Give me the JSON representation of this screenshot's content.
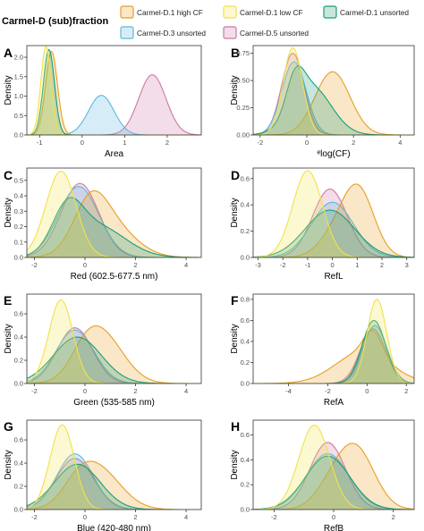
{
  "legend": {
    "title": "Carmel-D (sub)fraction",
    "entries": [
      {
        "label": "Carmel-D.1 high CF",
        "color": "#E69F22"
      },
      {
        "label": "Carmel-D.1 low CF",
        "color": "#F2E24A"
      },
      {
        "label": "Carmel-D.1 unsorted",
        "color": "#1A9E77"
      },
      {
        "label": "Carmel-D.3 unsorted",
        "color": "#5BB8E0"
      },
      {
        "label": "Carmel-D.5 unsorted",
        "color": "#CC79A7"
      }
    ]
  },
  "chart_data": [
    {
      "panel": "A",
      "type": "area",
      "xlabel": "Area",
      "ylabel": "Density",
      "xlim": [
        -1.3,
        2.8
      ],
      "ylim": [
        0,
        2.3
      ],
      "xticks": [
        -1,
        0,
        1,
        2
      ],
      "yticks": [
        0.0,
        0.5,
        1.0,
        1.5,
        2.0
      ],
      "xtick_labels": [
        "-1",
        "0",
        "1",
        "2"
      ],
      "ytick_labels": [
        "0.0",
        "0.5",
        "1.0",
        "1.5",
        "2.0"
      ],
      "series": [
        {
          "name": "Carmel-D.1 high CF",
          "peaks": [
            [
              -0.72,
              2.15,
              0.14
            ]
          ]
        },
        {
          "name": "Carmel-D.1 low CF",
          "peaks": [
            [
              -0.85,
              2.28,
              0.12
            ]
          ]
        },
        {
          "name": "Carmel-D.1 unsorted",
          "peaks": [
            [
              -0.78,
              2.2,
              0.13
            ]
          ]
        },
        {
          "name": "Carmel-D.3 unsorted",
          "peaks": [
            [
              0.45,
              1.02,
              0.3
            ]
          ]
        },
        {
          "name": "Carmel-D.5 unsorted",
          "peaks": [
            [
              1.65,
              1.55,
              0.32
            ]
          ]
        }
      ]
    },
    {
      "panel": "B",
      "type": "area",
      "xlabel": "ᵉlog(CF)",
      "ylabel": "Density",
      "xlim": [
        -2.3,
        4.6
      ],
      "ylim": [
        0,
        0.82
      ],
      "xticks": [
        -2,
        0,
        2,
        4
      ],
      "yticks": [
        0.0,
        0.25,
        0.5,
        0.75
      ],
      "xtick_labels": [
        "-2",
        "0",
        "2",
        "4"
      ],
      "ytick_labels": [
        "0.00",
        "0.25",
        "0.50",
        "0.75"
      ],
      "series": [
        {
          "name": "Carmel-D.1 high CF",
          "peaks": [
            [
              1.1,
              0.58,
              0.75
            ]
          ]
        },
        {
          "name": "Carmel-D.1 low CF",
          "peaks": [
            [
              -0.6,
              0.8,
              0.42
            ]
          ]
        },
        {
          "name": "Carmel-D.1 unsorted",
          "peaks": [
            [
              -0.5,
              0.3,
              0.38
            ],
            [
              0.2,
              0.44,
              0.85
            ]
          ]
        },
        {
          "name": "Carmel-D.3 unsorted",
          "peaks": [
            [
              -0.55,
              0.67,
              0.52
            ]
          ]
        },
        {
          "name": "Carmel-D.5 unsorted",
          "peaks": [
            [
              -0.6,
              0.75,
              0.48
            ]
          ]
        }
      ]
    },
    {
      "panel": "C",
      "type": "area",
      "xlabel": "Red (602.5-677.5 nm)",
      "ylabel": "Density",
      "xlim": [
        -2.3,
        4.6
      ],
      "ylim": [
        0,
        0.58
      ],
      "xticks": [
        -2,
        0,
        2,
        4
      ],
      "yticks": [
        0.0,
        0.1,
        0.2,
        0.3,
        0.4,
        0.5
      ],
      "xtick_labels": [
        "-2",
        "0",
        "2",
        "4"
      ],
      "ytick_labels": [
        "0.0",
        "0.1",
        "0.2",
        "0.3",
        "0.4",
        "0.5"
      ],
      "series": [
        {
          "name": "Carmel-D.1 high CF",
          "peaks": [
            [
              0.2,
              0.25,
              0.65
            ],
            [
              0.9,
              0.22,
              1.0
            ]
          ]
        },
        {
          "name": "Carmel-D.1 low CF",
          "peaks": [
            [
              -0.95,
              0.56,
              0.6
            ]
          ]
        },
        {
          "name": "Carmel-D.1 unsorted",
          "peaks": [
            [
              -0.7,
              0.27,
              0.6
            ],
            [
              0.5,
              0.2,
              1.1
            ]
          ]
        },
        {
          "name": "Carmel-D.3 unsorted",
          "peaks": [
            [
              -0.25,
              0.46,
              0.8
            ]
          ]
        },
        {
          "name": "Carmel-D.5 unsorted",
          "peaks": [
            [
              -0.2,
              0.48,
              0.75
            ]
          ]
        }
      ]
    },
    {
      "panel": "D",
      "type": "area",
      "xlabel": "RefL",
      "ylabel": "Density",
      "xlim": [
        -3.2,
        3.3
      ],
      "ylim": [
        0,
        0.68
      ],
      "xticks": [
        -3,
        -2,
        -1,
        0,
        1,
        2,
        3
      ],
      "yticks": [
        0.0,
        0.2,
        0.4,
        0.6
      ],
      "xtick_labels": [
        "-3",
        "-2",
        "-1",
        "0",
        "1",
        "2",
        "3"
      ],
      "ytick_labels": [
        "0.0",
        "0.2",
        "0.4",
        "0.6"
      ],
      "series": [
        {
          "name": "Carmel-D.1 high CF",
          "peaks": [
            [
              1.1,
              0.45,
              0.62
            ],
            [
              0.25,
              0.2,
              0.7
            ]
          ]
        },
        {
          "name": "Carmel-D.1 low CF",
          "peaks": [
            [
              -1.0,
              0.66,
              0.6
            ]
          ]
        },
        {
          "name": "Carmel-D.1 unsorted",
          "peaks": [
            [
              -0.1,
              0.36,
              1.0
            ]
          ]
        },
        {
          "name": "Carmel-D.3 unsorted",
          "peaks": [
            [
              0.0,
              0.42,
              0.85
            ]
          ]
        },
        {
          "name": "Carmel-D.5 unsorted",
          "peaks": [
            [
              -0.1,
              0.52,
              0.7
            ]
          ]
        }
      ]
    },
    {
      "panel": "E",
      "type": "area",
      "xlabel": "Green (535-585 nm)",
      "ylabel": "Density",
      "xlim": [
        -2.3,
        4.6
      ],
      "ylim": [
        0,
        0.77
      ],
      "xticks": [
        -2,
        0,
        2,
        4
      ],
      "yticks": [
        0.0,
        0.2,
        0.4,
        0.6
      ],
      "xtick_labels": [
        "-2",
        "0",
        "2",
        "4"
      ],
      "ytick_labels": [
        "0.0",
        "0.2",
        "0.4",
        "0.6"
      ],
      "series": [
        {
          "name": "Carmel-D.1 high CF",
          "peaks": [
            [
              0.7,
              0.4,
              0.85
            ],
            [
              0.0,
              0.15,
              0.6
            ]
          ]
        },
        {
          "name": "Carmel-D.1 low CF",
          "peaks": [
            [
              -0.95,
              0.72,
              0.48
            ]
          ]
        },
        {
          "name": "Carmel-D.1 unsorted",
          "peaks": [
            [
              -0.3,
              0.4,
              0.95
            ]
          ]
        },
        {
          "name": "Carmel-D.3 unsorted",
          "peaks": [
            [
              -0.4,
              0.46,
              0.75
            ]
          ]
        },
        {
          "name": "Carmel-D.5 unsorted",
          "peaks": [
            [
              -0.4,
              0.48,
              0.7
            ]
          ]
        }
      ]
    },
    {
      "panel": "F",
      "type": "area",
      "xlabel": "RefA",
      "ylabel": "Density",
      "xlim": [
        -5.8,
        2.4
      ],
      "ylim": [
        0,
        0.85
      ],
      "xticks": [
        -4,
        -2,
        0,
        2
      ],
      "yticks": [
        0.0,
        0.2,
        0.4,
        0.6,
        0.8
      ],
      "xtick_labels": [
        "-4",
        "-2",
        "0",
        "2"
      ],
      "ytick_labels": [
        "0.0",
        "0.2",
        "0.4",
        "0.6",
        "0.8"
      ],
      "series": [
        {
          "name": "Carmel-D.1 high CF",
          "peaks": [
            [
              -0.2,
              0.3,
              1.4
            ],
            [
              0.3,
              0.22,
              0.45
            ]
          ]
        },
        {
          "name": "Carmel-D.1 low CF",
          "peaks": [
            [
              0.5,
              0.8,
              0.5
            ]
          ]
        },
        {
          "name": "Carmel-D.1 unsorted",
          "peaks": [
            [
              0.35,
              0.6,
              0.6
            ]
          ]
        },
        {
          "name": "Carmel-D.3 unsorted",
          "peaks": [
            [
              0.4,
              0.55,
              0.62
            ]
          ]
        },
        {
          "name": "Carmel-D.5 unsorted",
          "peaks": [
            [
              0.3,
              0.52,
              0.65
            ]
          ]
        }
      ]
    },
    {
      "panel": "G",
      "type": "area",
      "xlabel": "Blue (420-480 nm)",
      "ylabel": "Density",
      "xlim": [
        -2.3,
        4.6
      ],
      "ylim": [
        0,
        0.77
      ],
      "xticks": [
        -2,
        0,
        2,
        4
      ],
      "yticks": [
        0.0,
        0.2,
        0.4,
        0.6
      ],
      "xtick_labels": [
        "-2",
        "0",
        "2",
        "4"
      ],
      "ytick_labels": [
        "0.0",
        "0.2",
        "0.4",
        "0.6"
      ],
      "series": [
        {
          "name": "Carmel-D.1 high CF",
          "peaks": [
            [
              0.5,
              0.35,
              0.9
            ],
            [
              -0.3,
              0.12,
              0.6
            ]
          ]
        },
        {
          "name": "Carmel-D.1 low CF",
          "peaks": [
            [
              -0.9,
              0.73,
              0.48
            ]
          ]
        },
        {
          "name": "Carmel-D.1 unsorted",
          "peaks": [
            [
              -0.3,
              0.39,
              0.9
            ]
          ]
        },
        {
          "name": "Carmel-D.3 unsorted",
          "peaks": [
            [
              -0.4,
              0.48,
              0.72
            ]
          ]
        },
        {
          "name": "Carmel-D.5 unsorted",
          "peaks": [
            [
              -0.4,
              0.44,
              0.75
            ]
          ]
        }
      ]
    },
    {
      "panel": "H",
      "type": "area",
      "xlabel": "RefB",
      "ylabel": "Density",
      "xlim": [
        -2.7,
        2.7
      ],
      "ylim": [
        0,
        0.72
      ],
      "xticks": [
        -2,
        0,
        2
      ],
      "yticks": [
        0.0,
        0.2,
        0.4,
        0.6
      ],
      "xtick_labels": [
        "-2",
        "0",
        "2"
      ],
      "ytick_labels": [
        "0.0",
        "0.2",
        "0.4",
        "0.6"
      ],
      "series": [
        {
          "name": "Carmel-D.1 high CF",
          "peaks": [
            [
              0.75,
              0.48,
              0.62
            ],
            [
              -0.1,
              0.15,
              0.55
            ]
          ]
        },
        {
          "name": "Carmel-D.1 low CF",
          "peaks": [
            [
              -0.65,
              0.68,
              0.52
            ]
          ]
        },
        {
          "name": "Carmel-D.1 unsorted",
          "peaks": [
            [
              -0.2,
              0.43,
              0.75
            ]
          ]
        },
        {
          "name": "Carmel-D.3 unsorted",
          "peaks": [
            [
              -0.2,
              0.45,
              0.72
            ]
          ]
        },
        {
          "name": "Carmel-D.5 unsorted",
          "peaks": [
            [
              -0.2,
              0.54,
              0.6
            ]
          ]
        }
      ]
    }
  ]
}
